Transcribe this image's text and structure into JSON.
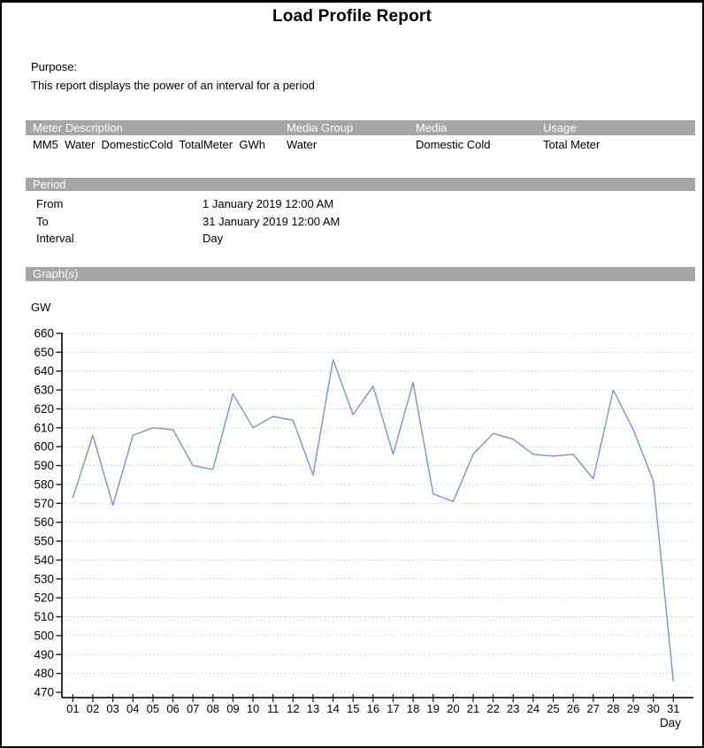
{
  "report": {
    "title": "Load Profile Report",
    "purpose_label": "Purpose:",
    "purpose_text": "This report displays the power of an interval for a period"
  },
  "meter_table": {
    "headers": [
      "Meter Description",
      "Media Group",
      "Media",
      "Usage"
    ],
    "row": {
      "meter_description": "MM5  Water  DomesticCold  TotalMeter  GWh",
      "media_group": "Water",
      "media": "Domestic Cold",
      "usage": "Total Meter"
    }
  },
  "period": {
    "section_label": "Period",
    "rows": [
      {
        "label": "From",
        "value": "1 January 2019 12:00 AM"
      },
      {
        "label": "To",
        "value": "31 January 2019 12:00 AM"
      },
      {
        "label": "Interval",
        "value": "Day"
      }
    ]
  },
  "graphs": {
    "section_label": "Graph(s)",
    "unit_label": "GW"
  },
  "chart_data": {
    "type": "line",
    "title": "",
    "ylabel": "GW",
    "xlabel": "Day",
    "ylim": [
      470,
      660
    ],
    "ytick_step": 10,
    "grid": true,
    "legend": "none",
    "categories": [
      "01",
      "02",
      "03",
      "04",
      "05",
      "06",
      "07",
      "08",
      "09",
      "10",
      "11",
      "12",
      "13",
      "14",
      "15",
      "16",
      "17",
      "18",
      "19",
      "20",
      "21",
      "22",
      "23",
      "24",
      "25",
      "26",
      "27",
      "28",
      "29",
      "30",
      "31"
    ],
    "values": [
      573,
      606,
      569,
      606,
      610,
      609,
      590,
      588,
      628,
      610,
      616,
      614,
      585,
      646,
      617,
      632,
      596,
      634,
      575,
      571,
      596,
      607,
      604,
      596,
      595,
      596,
      583,
      630,
      609,
      582,
      476
    ],
    "line_color": "#7a95c1",
    "grid_color": "#c9c9c9",
    "axis_color": "#1a1a1a"
  },
  "colors": {
    "section_bar": "#a6a6a6",
    "page_border": "#000000"
  }
}
